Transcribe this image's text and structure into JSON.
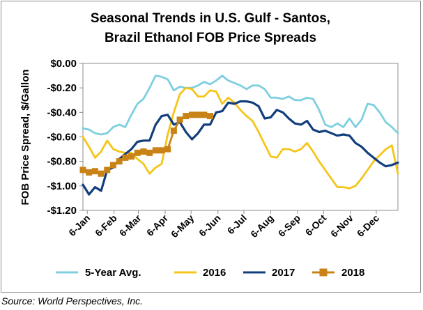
{
  "chart_data": {
    "type": "line",
    "title": [
      "Seasonal Trends in U.S. Gulf - Santos,",
      "Brazil Ethanol FOB Price Spreads"
    ],
    "ylabel": "FOB Price Spread, $/Gallon",
    "xlabel": "",
    "ylim": [
      -1.2,
      0.0
    ],
    "yticks": [
      0.0,
      -0.2,
      -0.4,
      -0.6,
      -0.8,
      -1.0,
      -1.2
    ],
    "ytick_labels": [
      "$0.00",
      "-$0.20",
      "-$0.40",
      "-$0.60",
      "-$0.80",
      "-$1.00",
      "-$1.20"
    ],
    "xlim": [
      "2018-01-01",
      "2018-12-31"
    ],
    "xticks": [
      "2018-01-06",
      "2018-02-06",
      "2018-03-06",
      "2018-04-06",
      "2018-05-06",
      "2018-06-06",
      "2018-07-06",
      "2018-08-06",
      "2018-09-06",
      "2018-10-06",
      "2018-11-06",
      "2018-12-06"
    ],
    "xtick_labels": [
      "6-Jan",
      "6-Feb",
      "6-Mar",
      "6-Apr",
      "6-May",
      "6-Jun",
      "6-Jul",
      "6-Aug",
      "6-Sep",
      "6-Oct",
      "6-Nov",
      "6-Dec"
    ],
    "grid": false,
    "legend_position": "bottom",
    "series": [
      {
        "name": "5-Year Avg.",
        "color": "#7ecfdf",
        "marker": "none",
        "x": [
          "2018-01-01",
          "2018-01-08",
          "2018-01-15",
          "2018-01-22",
          "2018-01-29",
          "2018-02-05",
          "2018-02-12",
          "2018-02-19",
          "2018-02-26",
          "2018-03-05",
          "2018-03-12",
          "2018-03-19",
          "2018-03-26",
          "2018-04-02",
          "2018-04-09",
          "2018-04-16",
          "2018-04-23",
          "2018-04-30",
          "2018-05-07",
          "2018-05-14",
          "2018-05-21",
          "2018-05-28",
          "2018-06-04",
          "2018-06-11",
          "2018-06-18",
          "2018-06-25",
          "2018-07-02",
          "2018-07-09",
          "2018-07-16",
          "2018-07-23",
          "2018-07-30",
          "2018-08-06",
          "2018-08-13",
          "2018-08-20",
          "2018-08-27",
          "2018-09-03",
          "2018-09-10",
          "2018-09-17",
          "2018-09-24",
          "2018-10-01",
          "2018-10-08",
          "2018-10-15",
          "2018-10-22",
          "2018-10-29",
          "2018-11-05",
          "2018-11-12",
          "2018-11-19",
          "2018-11-26",
          "2018-12-03",
          "2018-12-10",
          "2018-12-17",
          "2018-12-24",
          "2018-12-31"
        ],
        "values": [
          -0.53,
          -0.54,
          -0.57,
          -0.58,
          -0.57,
          -0.52,
          -0.5,
          -0.52,
          -0.42,
          -0.33,
          -0.29,
          -0.2,
          -0.1,
          -0.11,
          -0.13,
          -0.22,
          -0.19,
          -0.2,
          -0.2,
          -0.18,
          -0.15,
          -0.17,
          -0.14,
          -0.1,
          -0.14,
          -0.16,
          -0.18,
          -0.21,
          -0.18,
          -0.18,
          -0.21,
          -0.28,
          -0.28,
          -0.29,
          -0.27,
          -0.3,
          -0.3,
          -0.28,
          -0.29,
          -0.38,
          -0.5,
          -0.52,
          -0.49,
          -0.52,
          -0.45,
          -0.52,
          -0.46,
          -0.33,
          -0.34,
          -0.4,
          -0.48,
          -0.52,
          -0.57
        ]
      },
      {
        "name": "2016",
        "color": "#f5c518",
        "marker": "none",
        "x": [
          "2018-01-01",
          "2018-01-08",
          "2018-01-15",
          "2018-01-22",
          "2018-01-29",
          "2018-02-05",
          "2018-02-12",
          "2018-02-19",
          "2018-02-26",
          "2018-03-05",
          "2018-03-12",
          "2018-03-19",
          "2018-03-26",
          "2018-04-02",
          "2018-04-09",
          "2018-04-16",
          "2018-04-23",
          "2018-04-30",
          "2018-05-07",
          "2018-05-14",
          "2018-05-21",
          "2018-05-28",
          "2018-06-04",
          "2018-06-11",
          "2018-06-18",
          "2018-06-25",
          "2018-07-02",
          "2018-07-09",
          "2018-07-16",
          "2018-07-23",
          "2018-07-30",
          "2018-08-06",
          "2018-08-13",
          "2018-08-20",
          "2018-08-27",
          "2018-09-03",
          "2018-09-10",
          "2018-09-17",
          "2018-09-24",
          "2018-10-01",
          "2018-10-08",
          "2018-10-15",
          "2018-10-22",
          "2018-10-29",
          "2018-11-05",
          "2018-11-12",
          "2018-11-19",
          "2018-11-26",
          "2018-12-03",
          "2018-12-10",
          "2018-12-17",
          "2018-12-24",
          "2018-12-31"
        ],
        "values": [
          -0.6,
          -0.68,
          -0.77,
          -0.72,
          -0.63,
          -0.7,
          -0.72,
          -0.73,
          -0.73,
          -0.78,
          -0.82,
          -0.9,
          -0.85,
          -0.82,
          -0.58,
          -0.4,
          -0.25,
          -0.2,
          -0.21,
          -0.27,
          -0.27,
          -0.22,
          -0.23,
          -0.33,
          -0.28,
          -0.32,
          -0.38,
          -0.43,
          -0.47,
          -0.56,
          -0.66,
          -0.76,
          -0.77,
          -0.7,
          -0.7,
          -0.72,
          -0.7,
          -0.65,
          -0.72,
          -0.8,
          -0.87,
          -0.94,
          -1.01,
          -1.01,
          -1.02,
          -1.0,
          -0.94,
          -0.87,
          -0.8,
          -0.75,
          -0.7,
          -0.67,
          -0.9
        ]
      },
      {
        "name": "2017",
        "color": "#123e7c",
        "marker": "none",
        "x": [
          "2018-01-01",
          "2018-01-08",
          "2018-01-15",
          "2018-01-22",
          "2018-01-29",
          "2018-02-05",
          "2018-02-12",
          "2018-02-19",
          "2018-02-26",
          "2018-03-05",
          "2018-03-12",
          "2018-03-19",
          "2018-03-26",
          "2018-04-02",
          "2018-04-09",
          "2018-04-16",
          "2018-04-23",
          "2018-04-30",
          "2018-05-07",
          "2018-05-14",
          "2018-05-21",
          "2018-05-28",
          "2018-06-04",
          "2018-06-11",
          "2018-06-18",
          "2018-06-25",
          "2018-07-02",
          "2018-07-09",
          "2018-07-16",
          "2018-07-23",
          "2018-07-30",
          "2018-08-06",
          "2018-08-13",
          "2018-08-20",
          "2018-08-27",
          "2018-09-03",
          "2018-09-10",
          "2018-09-17",
          "2018-09-24",
          "2018-10-01",
          "2018-10-08",
          "2018-10-15",
          "2018-10-22",
          "2018-10-29",
          "2018-11-05",
          "2018-11-12",
          "2018-11-19",
          "2018-11-26",
          "2018-12-03",
          "2018-12-10",
          "2018-12-17",
          "2018-12-24",
          "2018-12-31"
        ],
        "values": [
          -0.99,
          -1.07,
          -1.01,
          -1.04,
          -0.87,
          -0.85,
          -0.78,
          -0.74,
          -0.7,
          -0.64,
          -0.63,
          -0.63,
          -0.5,
          -0.43,
          -0.42,
          -0.5,
          -0.48,
          -0.56,
          -0.62,
          -0.57,
          -0.5,
          -0.5,
          -0.4,
          -0.39,
          -0.32,
          -0.33,
          -0.31,
          -0.31,
          -0.32,
          -0.35,
          -0.45,
          -0.44,
          -0.38,
          -0.4,
          -0.45,
          -0.49,
          -0.5,
          -0.47,
          -0.54,
          -0.56,
          -0.55,
          -0.57,
          -0.59,
          -0.58,
          -0.59,
          -0.65,
          -0.68,
          -0.73,
          -0.77,
          -0.81,
          -0.84,
          -0.83,
          -0.81
        ]
      },
      {
        "name": "2018",
        "color": "#c98215",
        "marker": "square",
        "x": [
          "2018-01-01",
          "2018-01-08",
          "2018-01-15",
          "2018-01-22",
          "2018-01-29",
          "2018-02-05",
          "2018-02-12",
          "2018-02-19",
          "2018-02-26",
          "2018-03-05",
          "2018-03-12",
          "2018-03-19",
          "2018-03-26",
          "2018-04-02",
          "2018-04-09",
          "2018-04-16",
          "2018-04-23",
          "2018-04-30",
          "2018-05-07",
          "2018-05-14",
          "2018-05-21",
          "2018-05-28"
        ],
        "values": [
          -0.87,
          -0.89,
          -0.88,
          -0.9,
          -0.87,
          -0.83,
          -0.8,
          -0.77,
          -0.76,
          -0.73,
          -0.72,
          -0.73,
          -0.71,
          -0.71,
          -0.7,
          -0.55,
          -0.46,
          -0.43,
          -0.42,
          -0.42,
          -0.42,
          -0.43
        ]
      }
    ]
  },
  "source": "Source: World Perspectives, Inc."
}
